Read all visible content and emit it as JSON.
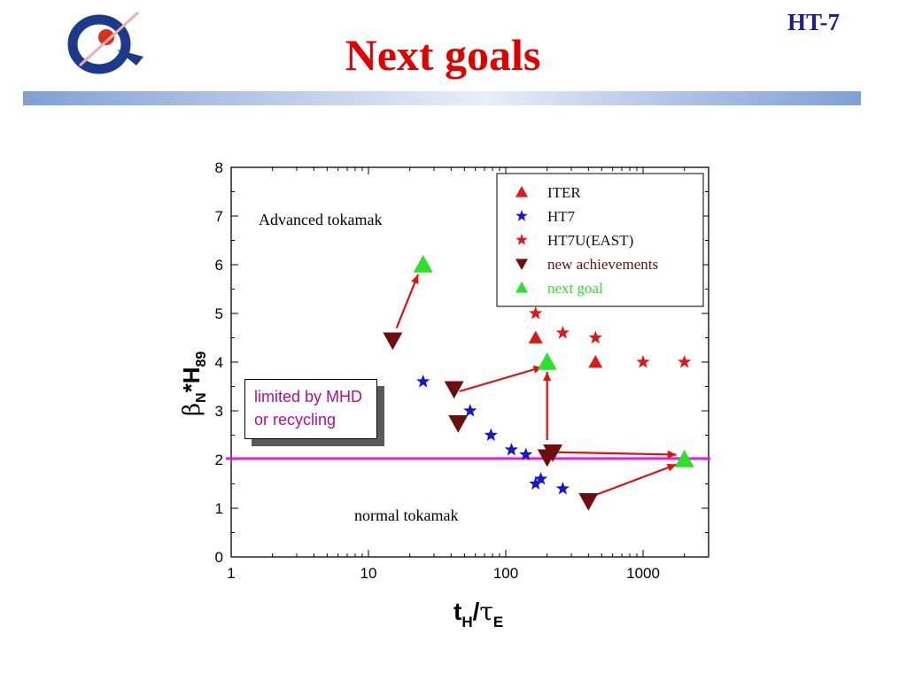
{
  "slide": {
    "title": "Next goals",
    "corner_tag": "HT-7"
  },
  "note": {
    "line1": "limited by MHD",
    "line2": "or recycling"
  },
  "colors": {
    "title": "#e00000",
    "iter": "#e01818",
    "ht7": "#1717d0",
    "ht7u": "#e01818",
    "new_achievements": "#6e0d0d",
    "next_goal": "#2ce02c",
    "limit_line": "#e020e0",
    "arrow": "#dd1111",
    "note_text": "#b0108a"
  },
  "chart_data": {
    "type": "scatter",
    "x_scale": "log",
    "xlim": [
      1,
      3000
    ],
    "ylim": [
      0,
      8
    ],
    "x_ticks": [
      "1",
      "10",
      "100",
      "1000"
    ],
    "y_ticks": [
      "0",
      "1",
      "2",
      "3",
      "4",
      "5",
      "6",
      "7",
      "8"
    ],
    "xlabel": {
      "main": "t",
      "sub": "H",
      "slash": "/",
      "tau": "τ",
      "tau_sub": "E"
    },
    "ylabel": {
      "beta": "β",
      "beta_sub": "N",
      "rest": "*H",
      "rest_sub": "89"
    },
    "legend_position": "top-right",
    "region_labels": {
      "upper": "Advanced tokamak",
      "lower": "normal tokamak"
    },
    "limit_line_y": 2.02,
    "series": [
      {
        "name": "ITER",
        "marker": "triangle-up",
        "points": [
          [
            165,
            4.5
          ],
          [
            450,
            4.0
          ]
        ]
      },
      {
        "name": "HT7",
        "marker": "star",
        "points": [
          [
            25,
            3.6
          ],
          [
            55,
            3.0
          ],
          [
            78,
            2.5
          ],
          [
            110,
            2.2
          ],
          [
            140,
            2.1
          ],
          [
            165,
            1.5
          ],
          [
            180,
            1.6
          ],
          [
            260,
            1.4
          ]
        ]
      },
      {
        "name": "HT7U(EAST)",
        "marker": "star",
        "points": [
          [
            165,
            5.0
          ],
          [
            260,
            4.6
          ],
          [
            450,
            4.5
          ],
          [
            1000,
            4.0
          ],
          [
            2000,
            4.0
          ]
        ]
      },
      {
        "name": "new achievements",
        "marker": "triangle-down",
        "points": [
          [
            15,
            4.45
          ],
          [
            42,
            3.45
          ],
          [
            45,
            2.75
          ],
          [
            200,
            2.05
          ],
          [
            220,
            2.15
          ],
          [
            400,
            1.15
          ]
        ]
      },
      {
        "name": "next goal",
        "marker": "triangle-up",
        "points": [
          [
            25,
            6.0
          ],
          [
            200,
            4.0
          ],
          [
            2000,
            2.0
          ]
        ]
      }
    ],
    "arrows": [
      {
        "from": [
          16,
          4.7
        ],
        "to": [
          23,
          5.8
        ]
      },
      {
        "from": [
          46,
          3.4
        ],
        "to": [
          185,
          3.9
        ]
      },
      {
        "from": [
          200,
          2.4
        ],
        "to": [
          200,
          3.8
        ]
      },
      {
        "from": [
          240,
          2.15
        ],
        "to": [
          1750,
          2.1
        ]
      },
      {
        "from": [
          430,
          1.25
        ],
        "to": [
          1750,
          1.9
        ]
      }
    ]
  }
}
